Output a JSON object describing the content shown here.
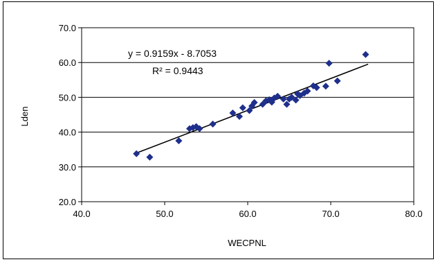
{
  "chart_data": {
    "type": "scatter",
    "title": "",
    "xlabel": "WECPNL",
    "ylabel": "Lden",
    "xlim": [
      40,
      80
    ],
    "ylim": [
      20,
      70
    ],
    "x_ticks": [
      "40.0",
      "50.0",
      "60.0",
      "70.0",
      "80.0"
    ],
    "y_ticks": [
      "20.0",
      "30.0",
      "40.0",
      "50.0",
      "60.0",
      "70.0"
    ],
    "grid": "horizontal",
    "marker_color": "#1f2f8c",
    "trendline": {
      "slope": 0.9159,
      "intercept": -8.7053,
      "x_range": [
        46.5,
        74.5
      ],
      "equation_label": "y = 0.9159x - 8.7053",
      "r2_label": "R² = 0.9443"
    },
    "points": [
      {
        "x": 46.6,
        "y": 33.8
      },
      {
        "x": 48.2,
        "y": 32.8
      },
      {
        "x": 51.7,
        "y": 37.5
      },
      {
        "x": 53.0,
        "y": 41.0
      },
      {
        "x": 53.4,
        "y": 41.3
      },
      {
        "x": 53.8,
        "y": 41.6
      },
      {
        "x": 54.2,
        "y": 41.0
      },
      {
        "x": 55.8,
        "y": 42.3
      },
      {
        "x": 58.2,
        "y": 45.5
      },
      {
        "x": 59.0,
        "y": 44.5
      },
      {
        "x": 59.4,
        "y": 47.0
      },
      {
        "x": 60.2,
        "y": 46.2
      },
      {
        "x": 60.5,
        "y": 47.5
      },
      {
        "x": 60.8,
        "y": 48.5
      },
      {
        "x": 61.8,
        "y": 48.0
      },
      {
        "x": 62.2,
        "y": 49.0
      },
      {
        "x": 62.6,
        "y": 49.3
      },
      {
        "x": 62.9,
        "y": 48.6
      },
      {
        "x": 63.2,
        "y": 49.8
      },
      {
        "x": 63.6,
        "y": 50.3
      },
      {
        "x": 64.3,
        "y": 49.5
      },
      {
        "x": 64.7,
        "y": 48.0
      },
      {
        "x": 65.0,
        "y": 49.5
      },
      {
        "x": 65.3,
        "y": 50.0
      },
      {
        "x": 65.8,
        "y": 49.2
      },
      {
        "x": 66.0,
        "y": 51.0
      },
      {
        "x": 66.3,
        "y": 50.5
      },
      {
        "x": 66.8,
        "y": 51.2
      },
      {
        "x": 67.2,
        "y": 51.8
      },
      {
        "x": 67.9,
        "y": 53.3
      },
      {
        "x": 68.3,
        "y": 52.8
      },
      {
        "x": 69.4,
        "y": 53.2
      },
      {
        "x": 69.8,
        "y": 59.8
      },
      {
        "x": 70.8,
        "y": 54.7
      },
      {
        "x": 74.2,
        "y": 62.3
      }
    ]
  }
}
